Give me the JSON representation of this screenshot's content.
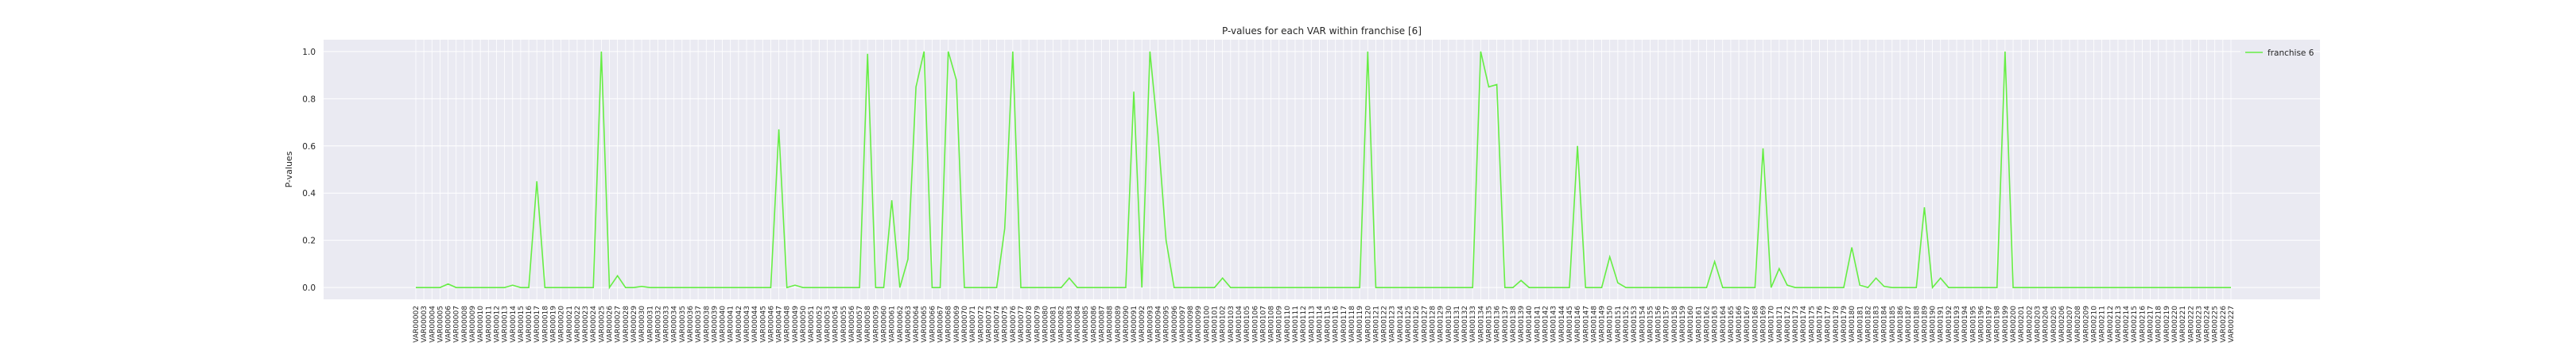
{
  "chart_data": {
    "type": "line",
    "title": "P-values for each VAR within franchise [6]",
    "xlabel": "",
    "ylabel": "P-values",
    "ylim": [
      -0.05,
      1.05
    ],
    "yticks": [
      0.0,
      0.2,
      0.4,
      0.6,
      0.8,
      1.0
    ],
    "ytick_labels": [
      "0.0",
      "0.2",
      "0.4",
      "0.6",
      "0.8",
      "1.0"
    ],
    "grid": true,
    "legend_position": "top-right",
    "colors": {
      "line": "#66ee44",
      "background": "#eaeaf2",
      "grid": "#ffffff"
    },
    "series": [
      {
        "name": "franchise 6"
      }
    ],
    "x_prefix": "VAR",
    "x_start": 2,
    "x_end": 227,
    "default_value": 0.0,
    "nonzero_points": {
      "VAR00006": 0.015,
      "VAR00014": 0.01,
      "VAR00017": 0.45,
      "VAR00025": 1.0,
      "VAR00027": 0.05,
      "VAR00030": 0.005,
      "VAR00047": 0.67,
      "VAR00049": 0.01,
      "VAR00058": 0.99,
      "VAR00061": 0.37,
      "VAR00063": 0.12,
      "VAR00064": 0.85,
      "VAR00065": 1.0,
      "VAR00068": 1.0,
      "VAR00069": 0.88,
      "VAR00075": 0.25,
      "VAR00076": 1.0,
      "VAR00083": 0.04,
      "VAR00091": 0.83,
      "VAR00093": 1.0,
      "VAR00094": 0.65,
      "VAR00095": 0.2,
      "VAR00102": 0.04,
      "VAR00120": 1.0,
      "VAR00134": 1.0,
      "VAR00135": 0.85,
      "VAR00136": 0.86,
      "VAR00139": 0.03,
      "VAR00146": 0.6,
      "VAR00150": 0.13,
      "VAR00151": 0.02,
      "VAR00163": 0.11,
      "VAR00169": 0.59,
      "VAR00171": 0.08,
      "VAR00172": 0.01,
      "VAR00180": 0.17,
      "VAR00181": 0.01,
      "VAR00183": 0.04,
      "VAR00184": 0.005,
      "VAR00189": 0.34,
      "VAR00191": 0.04,
      "VAR00199": 1.0
    }
  }
}
